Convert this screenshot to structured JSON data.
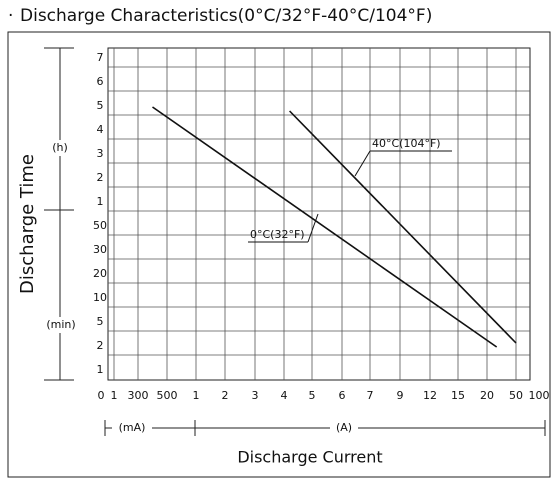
{
  "chart_data": {
    "type": "line",
    "title": "Discharge Characteristics(0°C/32°F-40°C/104°F)",
    "x_label": "Discharge Current",
    "y_label": "Discharge Time",
    "y_units": [
      "(h)",
      "(min)"
    ],
    "x_units": [
      "(mA)",
      "(A)"
    ],
    "xticks": [
      0,
      {
        "value": 0.001,
        "label": "1"
      },
      {
        "value": 0.3,
        "label": "300"
      },
      {
        "value": 0.5,
        "label": "500"
      },
      1,
      2,
      3,
      4,
      5,
      6,
      7,
      9,
      12,
      15,
      20,
      50,
      100
    ],
    "yticks": [
      1,
      2,
      5,
      10,
      20,
      30,
      50,
      {
        "value": 60,
        "label": "1"
      },
      {
        "value": 120,
        "label": "2"
      },
      {
        "value": 180,
        "label": "3"
      },
      {
        "value": 240,
        "label": "4"
      },
      {
        "value": 300,
        "label": "5"
      },
      {
        "value": 360,
        "label": "6"
      },
      {
        "value": 420,
        "label": "7"
      }
    ],
    "xlim": [
      0,
      100
    ],
    "ylim": [
      1,
      420
    ],
    "grid": true,
    "series": [
      {
        "name": "0°C(32°F)",
        "color": "#111111",
        "x": [
          0.4,
          30
        ],
        "values": [
          320,
          3
        ]
      },
      {
        "name": "40°C(104°F)",
        "color": "#111111",
        "x": [
          4.2,
          50
        ],
        "values": [
          310,
          3.5
        ]
      }
    ]
  }
}
